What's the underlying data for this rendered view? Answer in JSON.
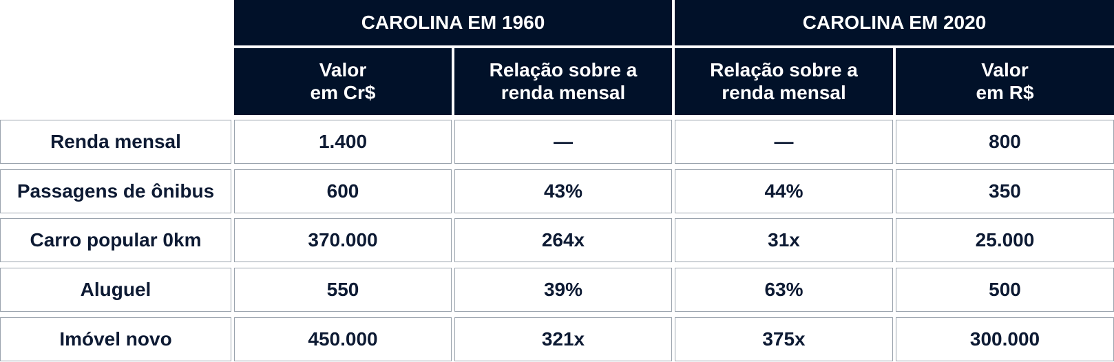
{
  "table": {
    "groups": [
      "CAROLINA EM 1960",
      "CAROLINA EM 2020"
    ],
    "columns": [
      "Valor\nem Cr$",
      "Relação sobre a\nrenda mensal",
      "Relação sobre a\nrenda mensal",
      "Valor\nem R$"
    ],
    "rows": [
      {
        "label": "Renda mensal",
        "cells": [
          "1.400",
          "—",
          "—",
          "800"
        ]
      },
      {
        "label": "Passagens de ônibus",
        "cells": [
          "600",
          "43%",
          "44%",
          "350"
        ]
      },
      {
        "label": "Carro popular 0km",
        "cells": [
          "370.000",
          "264x",
          "31x",
          "25.000"
        ]
      },
      {
        "label": "Aluguel",
        "cells": [
          "550",
          "39%",
          "63%",
          "500"
        ]
      },
      {
        "label": "Imóvel novo",
        "cells": [
          "450.000",
          "321x",
          "375x",
          "300.000"
        ]
      }
    ]
  }
}
